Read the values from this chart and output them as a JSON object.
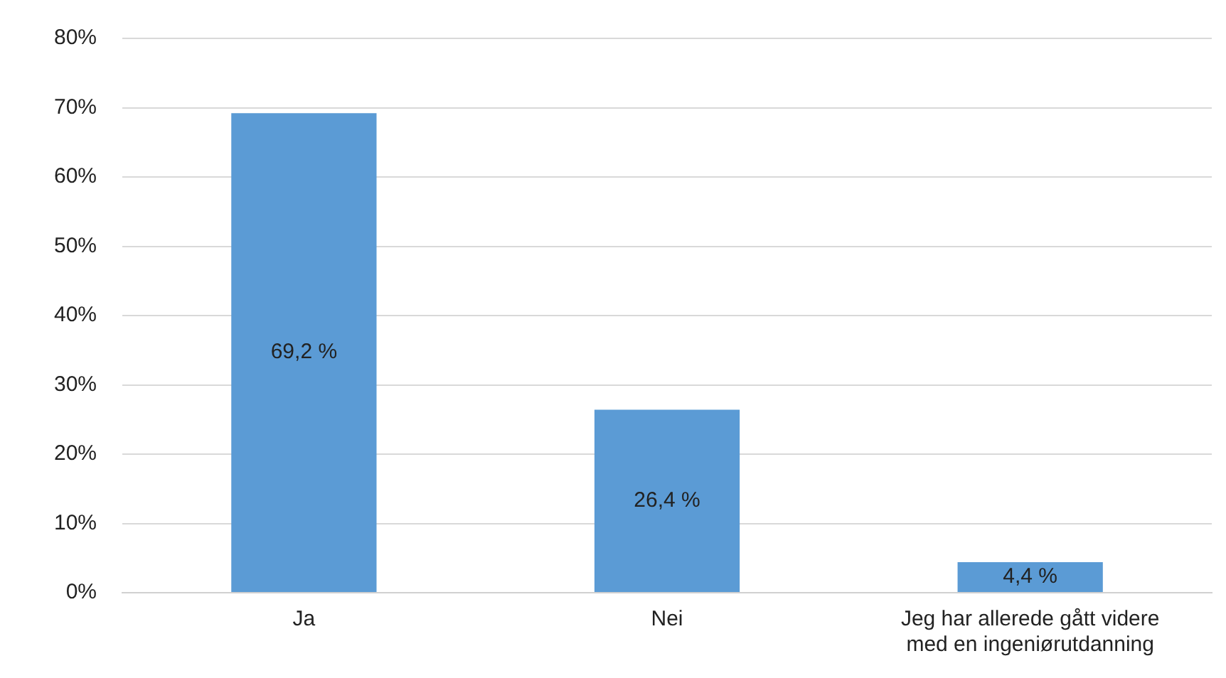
{
  "chart_data": {
    "type": "bar",
    "categories": [
      "Ja",
      "Nei",
      "Jeg har allerede gått videre med en ingeniørutdanning"
    ],
    "values": [
      69.2,
      26.4,
      4.4
    ],
    "value_labels": [
      "69,2 %",
      "26,4 %",
      "4,4 %"
    ],
    "color": "#5b9bd5",
    "ylim": [
      0,
      80
    ],
    "yticks": [
      {
        "value": 0,
        "label": "0%"
      },
      {
        "value": 10,
        "label": "10%"
      },
      {
        "value": 20,
        "label": "20%"
      },
      {
        "value": 30,
        "label": "30%"
      },
      {
        "value": 40,
        "label": "40%"
      },
      {
        "value": 50,
        "label": "50%"
      },
      {
        "value": 60,
        "label": "60%"
      },
      {
        "value": 70,
        "label": "70%"
      },
      {
        "value": 80,
        "label": "80%"
      }
    ],
    "grid": "y",
    "legend": false
  }
}
